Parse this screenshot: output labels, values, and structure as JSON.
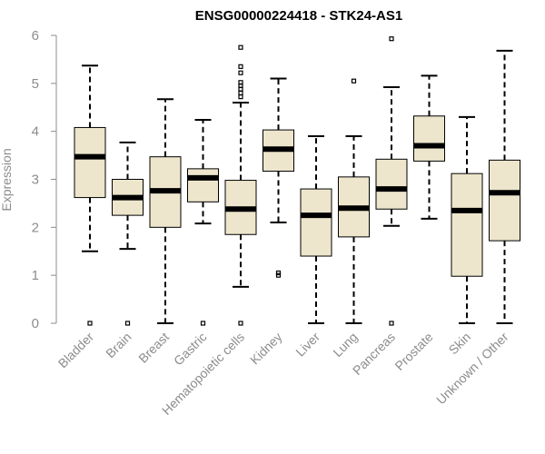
{
  "chart_data": {
    "type": "boxplot",
    "title": "ENSG00000224418 - STK24-AS1",
    "xlabel": "",
    "ylabel": "Expression",
    "ylim": [
      0,
      6
    ],
    "yticks": [
      0,
      1,
      2,
      3,
      4,
      5,
      6
    ],
    "box_color": "#ede6cc",
    "categories": [
      "Bladder",
      "Brain",
      "Breast",
      "Gastric",
      "Hematopoietic cells",
      "Kidney",
      "Liver",
      "Lung",
      "Pancreas",
      "Prostate",
      "Skin",
      "Unknown / Other"
    ],
    "boxes": [
      {
        "name": "Bladder",
        "whisker_low": 1.5,
        "q1": 2.62,
        "median": 3.47,
        "q3": 4.08,
        "whisker_high": 5.37,
        "outliers": [
          0.0
        ]
      },
      {
        "name": "Brain",
        "whisker_low": 1.55,
        "q1": 2.25,
        "median": 2.62,
        "q3": 3.0,
        "whisker_high": 3.77,
        "outliers": [
          0.0
        ]
      },
      {
        "name": "Breast",
        "whisker_low": 0.0,
        "q1": 2.0,
        "median": 2.76,
        "q3": 3.47,
        "whisker_high": 4.67,
        "outliers": []
      },
      {
        "name": "Gastric",
        "whisker_low": 2.08,
        "q1": 2.53,
        "median": 3.03,
        "q3": 3.22,
        "whisker_high": 4.24,
        "outliers": [
          0.0
        ]
      },
      {
        "name": "Hematopoietic cells",
        "whisker_low": 0.76,
        "q1": 1.85,
        "median": 2.38,
        "q3": 2.98,
        "whisker_high": 4.6,
        "outliers": [
          0.0,
          4.72,
          4.8,
          4.88,
          4.95,
          5.02,
          5.22,
          5.35,
          5.75
        ]
      },
      {
        "name": "Kidney",
        "whisker_low": 2.1,
        "q1": 3.17,
        "median": 3.63,
        "q3": 4.03,
        "whisker_high": 5.1,
        "outliers": [
          1.0,
          1.05
        ]
      },
      {
        "name": "Liver",
        "whisker_low": 0.0,
        "q1": 1.4,
        "median": 2.25,
        "q3": 2.8,
        "whisker_high": 3.9,
        "outliers": []
      },
      {
        "name": "Lung",
        "whisker_low": 0.0,
        "q1": 1.8,
        "median": 2.4,
        "q3": 3.05,
        "whisker_high": 3.9,
        "outliers": [
          5.05
        ]
      },
      {
        "name": "Pancreas",
        "whisker_low": 2.03,
        "q1": 2.38,
        "median": 2.8,
        "q3": 3.42,
        "whisker_high": 4.92,
        "outliers": [
          0.0,
          5.93
        ]
      },
      {
        "name": "Prostate",
        "whisker_low": 2.18,
        "q1": 3.38,
        "median": 3.7,
        "q3": 4.32,
        "whisker_high": 5.16,
        "outliers": []
      },
      {
        "name": "Skin",
        "whisker_low": 0.0,
        "q1": 0.98,
        "median": 2.35,
        "q3": 3.12,
        "whisker_high": 4.3,
        "outliers": []
      },
      {
        "name": "Unknown / Other",
        "whisker_low": 0.0,
        "q1": 1.72,
        "median": 2.72,
        "q3": 3.4,
        "whisker_high": 5.68,
        "outliers": []
      }
    ]
  }
}
